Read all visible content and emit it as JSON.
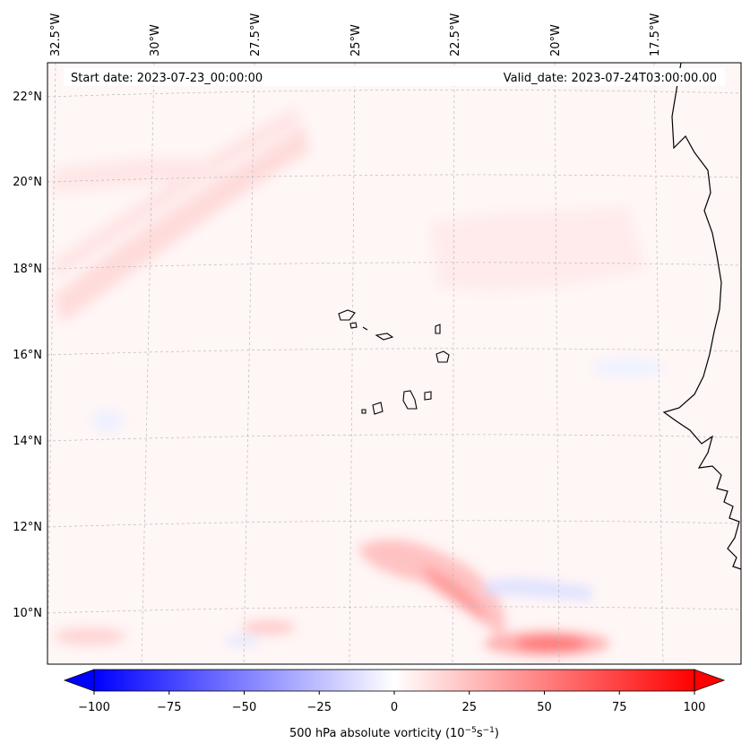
{
  "header": {
    "start_date": "Start date: 2023-07-23_00:00:00",
    "valid_date": "Valid_date: 2023-07-24T03:00:00.00"
  },
  "map": {
    "lon_labels": [
      "32.5°W",
      "30°W",
      "27.5°W",
      "25°W",
      "22.5°W",
      "20°W",
      "17.5°W"
    ],
    "lat_labels": [
      "22°N",
      "20°N",
      "18°N",
      "16°N",
      "14°N",
      "12°N",
      "10°N"
    ],
    "region": "Cabo Verde / West African coast",
    "features": [
      "coastline-africa",
      "cabo-verde-islands",
      "vorticity-field"
    ]
  },
  "colorbar": {
    "ticks": [
      "−100",
      "−75",
      "−50",
      "−25",
      "0",
      "25",
      "50",
      "75",
      "100"
    ],
    "label_prefix": "500 hPa absolute vorticity (10",
    "label_exp1": "−5",
    "label_mid": "s",
    "label_exp2": "−1",
    "label_suffix": ")",
    "min": -100,
    "max": 100,
    "neg_color": "#0000ff",
    "pos_color": "#ff0000"
  },
  "colors": {
    "background_tint": "#fff6f6",
    "grid": "#bbbbbb",
    "coast": "#000000"
  }
}
